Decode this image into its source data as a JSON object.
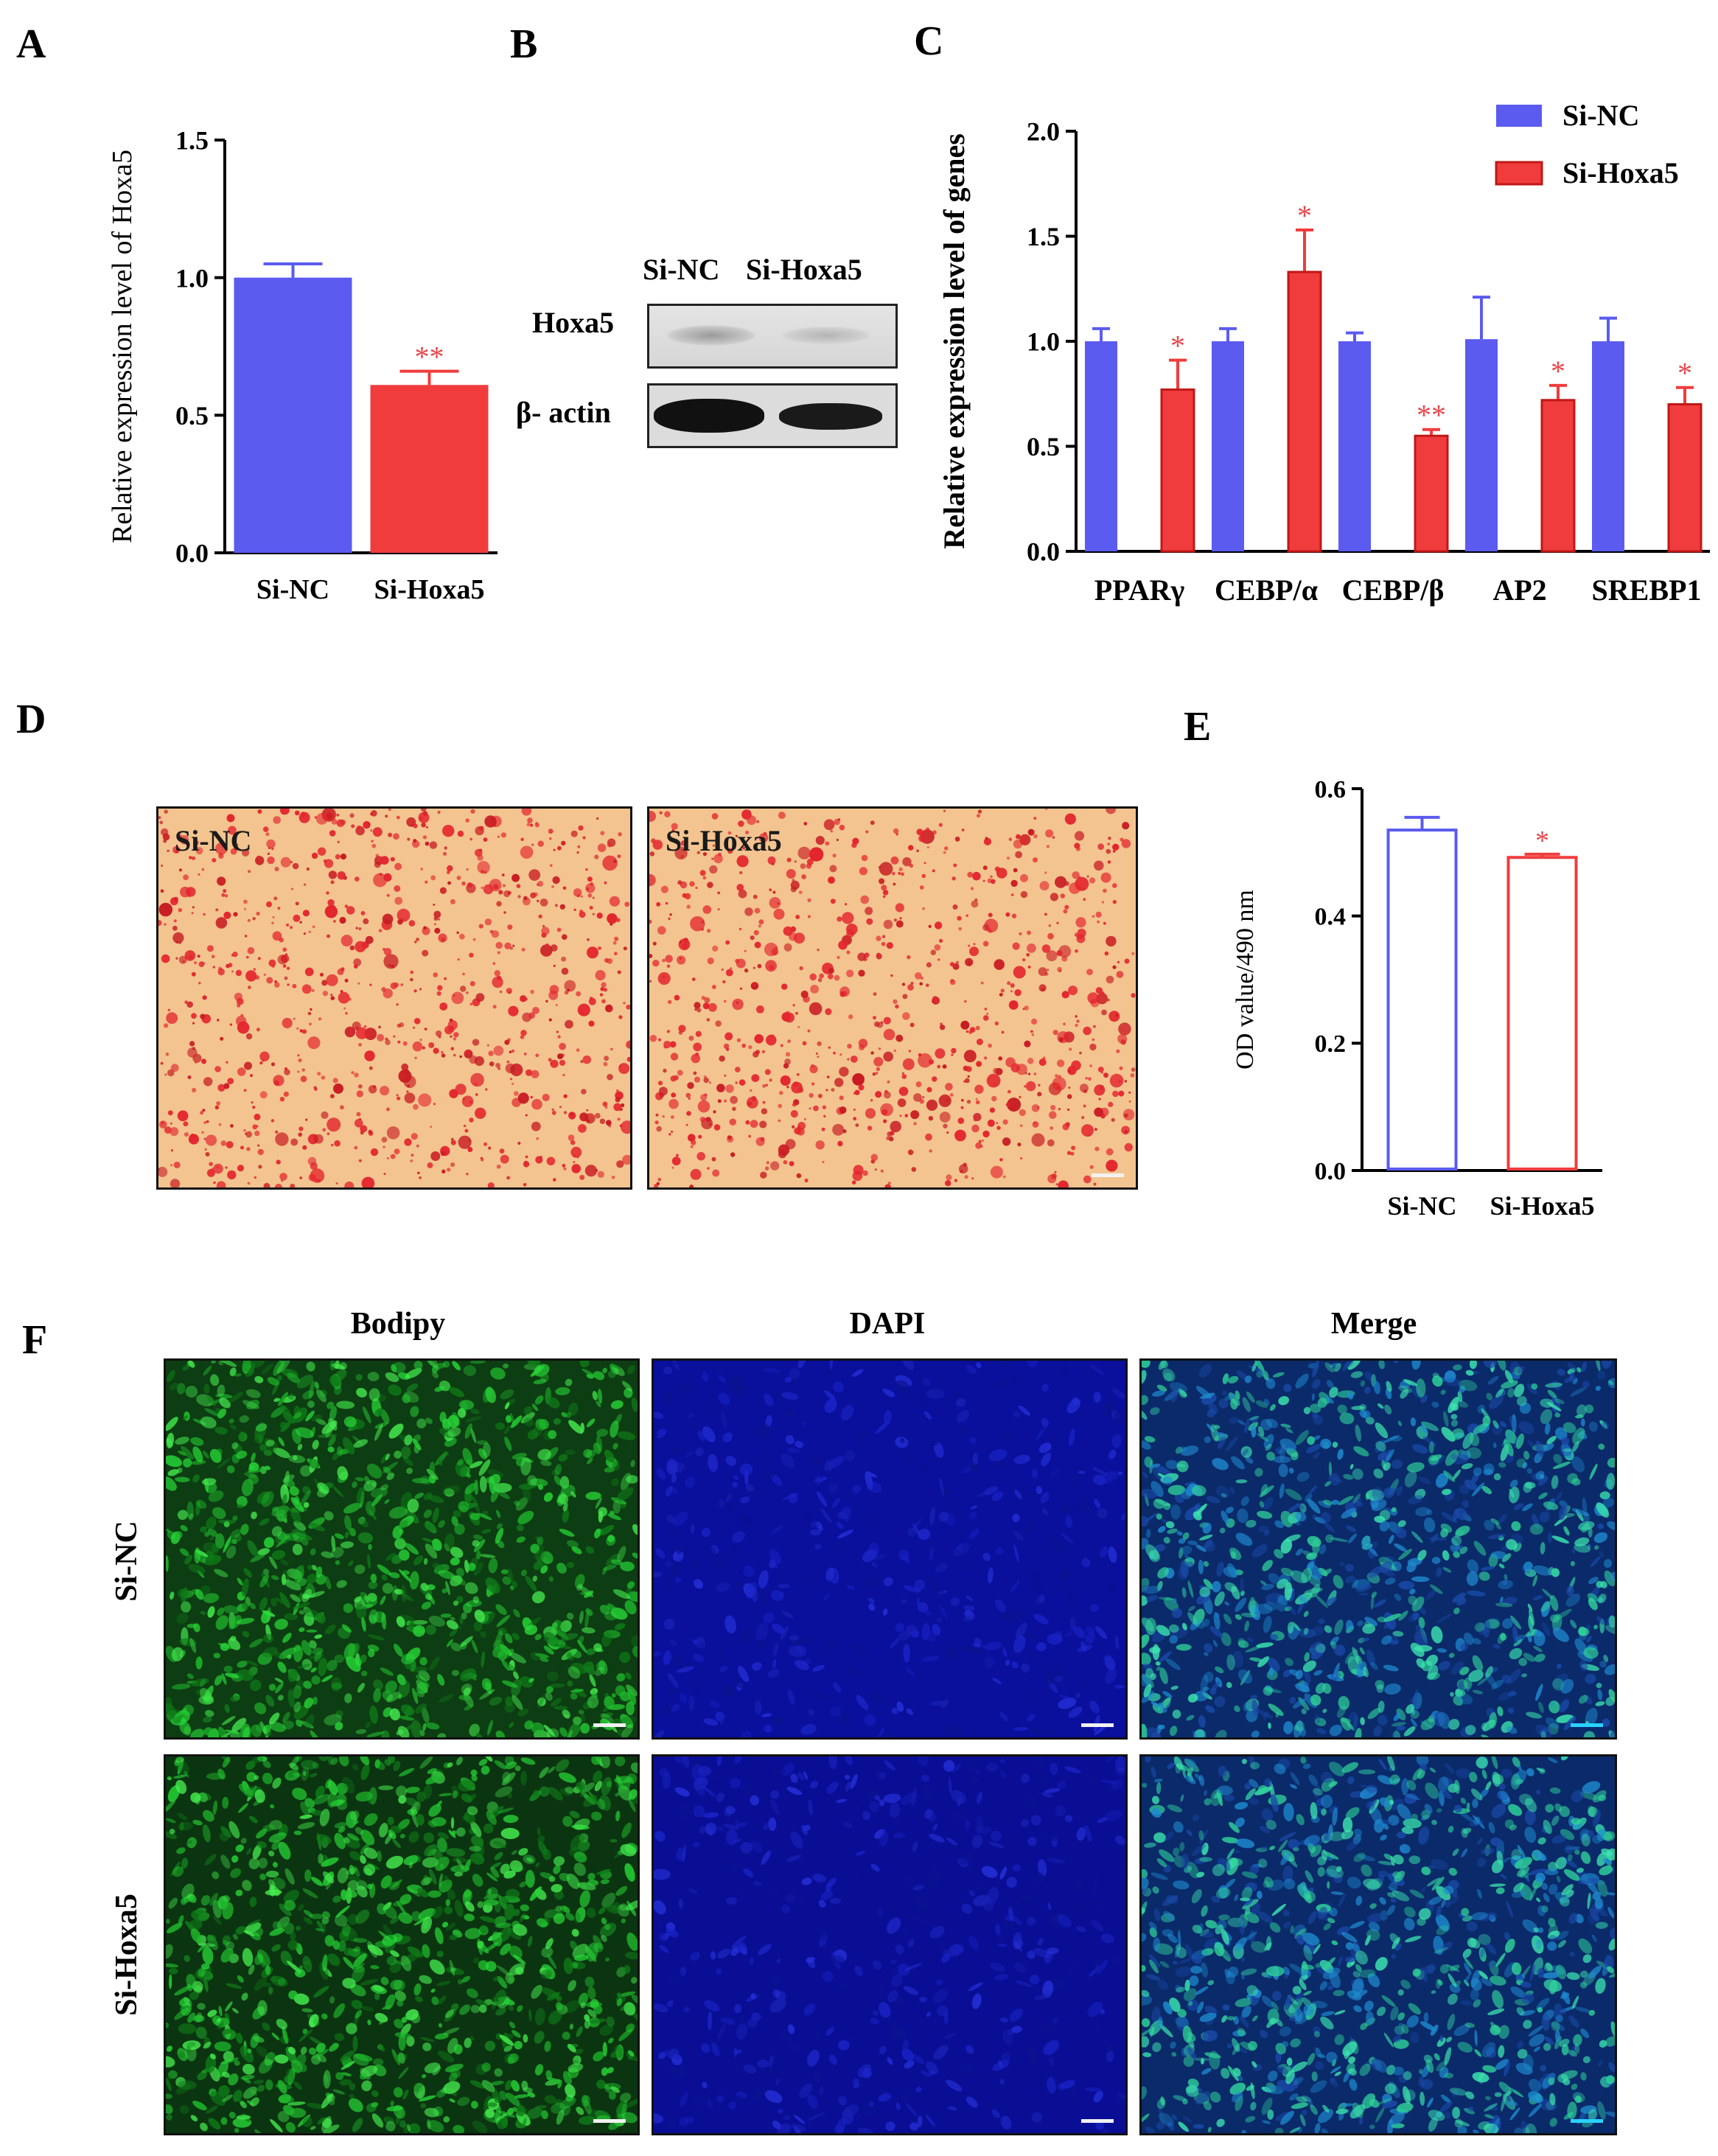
{
  "panels": {
    "A": "A",
    "B": "B",
    "C": "C",
    "D": "D",
    "E": "E",
    "F": "F"
  },
  "colors": {
    "blue": "#5B5BF0",
    "red": "#F03C3C",
    "sig": "#E8454B"
  },
  "chart_data": [
    {
      "id": "A",
      "type": "bar",
      "title": "",
      "ylabel": "Relative expression level of Hoxa5",
      "xlabel": "",
      "categories": [
        "Si-NC",
        "Si-Hoxa5"
      ],
      "values": [
        1.0,
        0.61
      ],
      "errors": [
        0.05,
        0.05
      ],
      "significance": [
        "",
        "**"
      ],
      "ylim": [
        0,
        1.5
      ],
      "yticks": [
        "0.0",
        "0.5",
        "1.0",
        "1.5"
      ],
      "ytick_values": [
        0,
        0.5,
        1.0,
        1.5
      ],
      "bar_colors": [
        "#5B5BF0",
        "#F03C3C"
      ],
      "filled": true
    },
    {
      "id": "C",
      "type": "bar",
      "title": "",
      "ylabel": "Relative expression level of genes",
      "xlabel": "",
      "categories": [
        "PPARγ",
        "CEBP/α",
        "CEBP/β",
        "AP2",
        "SREBP1"
      ],
      "series": [
        {
          "name": "Si-NC",
          "color": "#5B5BF0",
          "values": [
            1.0,
            1.0,
            1.0,
            1.01,
            1.0
          ],
          "errors": [
            0.06,
            0.06,
            0.04,
            0.2,
            0.11
          ],
          "significance": [
            "",
            "",
            "",
            "",
            ""
          ]
        },
        {
          "name": "Si-Hoxa5",
          "color": "#F03C3C",
          "values": [
            0.77,
            1.33,
            0.55,
            0.72,
            0.7
          ],
          "errors": [
            0.14,
            0.2,
            0.03,
            0.07,
            0.08
          ],
          "significance": [
            "*",
            "*",
            "**",
            "*",
            "*"
          ]
        }
      ],
      "ylim": [
        0,
        2.0
      ],
      "yticks": [
        "0.0",
        "0.5",
        "1.0",
        "1.5",
        "2.0"
      ],
      "ytick_values": [
        0,
        0.5,
        1.0,
        1.5,
        2.0
      ],
      "legend_position": "top-right"
    },
    {
      "id": "E",
      "type": "bar",
      "title": "",
      "ylabel": "OD value/490 nm",
      "xlabel": "",
      "categories": [
        "Si-NC",
        "Si-Hoxa5"
      ],
      "values": [
        0.535,
        0.492
      ],
      "errors": [
        0.02,
        0.005
      ],
      "significance": [
        "",
        "*"
      ],
      "ylim": [
        0,
        0.6
      ],
      "yticks": [
        "0.0",
        "0.2",
        "0.4",
        "0.6"
      ],
      "ytick_values": [
        0,
        0.2,
        0.4,
        0.6
      ],
      "bar_colors": [
        "#5B5BF0",
        "#F03C3C"
      ],
      "filled": false
    }
  ],
  "western": {
    "lane_labels": [
      "Si-NC",
      "Si-Hoxa5"
    ],
    "row_labels": [
      "Hoxa5",
      "β- actin"
    ]
  },
  "oil_red": {
    "images": [
      "Si-NC",
      "Si-Hoxa5"
    ]
  },
  "fluorescence": {
    "columns": [
      "Bodipy",
      "DAPI",
      "Merge"
    ],
    "rows": [
      "Si-NC",
      "Si-Hoxa5"
    ]
  }
}
